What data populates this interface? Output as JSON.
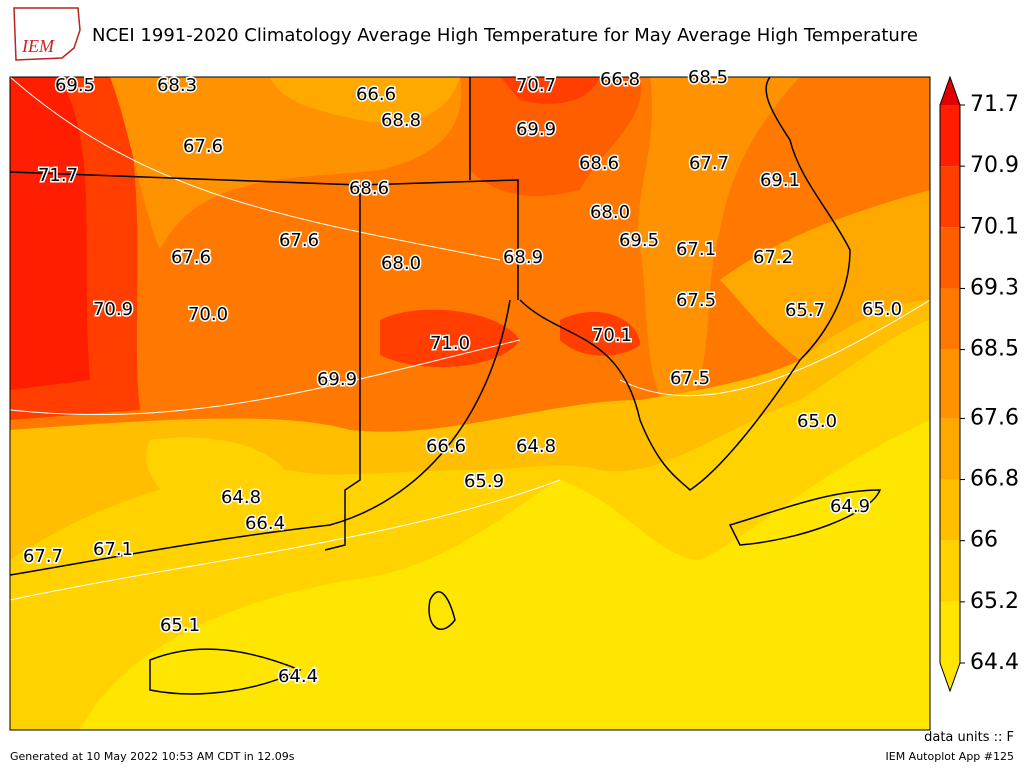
{
  "header": {
    "title": "NCEI 1991-2020 Climatology Average High Temperature for May Average High Temperature",
    "logo": "IEM"
  },
  "map": {
    "contour_labels": [
      "69.5",
      "68.3",
      "66.6",
      "70.7",
      "66.8",
      "68.5",
      "68.8",
      "69.9",
      "67.6",
      "68.6",
      "67.7",
      "71.7",
      "68.6",
      "69.1",
      "68.0",
      "69.5",
      "67.6",
      "67.1",
      "67.6",
      "68.0",
      "68.9",
      "67.2",
      "67.5",
      "70.9",
      "70.0",
      "65.7",
      "65.0",
      "70.1",
      "71.0",
      "69.9",
      "67.5",
      "65.0",
      "66.6",
      "64.8",
      "65.9",
      "64.8",
      "64.9",
      "66.4",
      "67.7",
      "67.1",
      "65.1",
      "64.4"
    ]
  },
  "colorbar": {
    "ticks": [
      64.4,
      65.2,
      66,
      66.8,
      67.6,
      68.5,
      69.3,
      70.1,
      70.9,
      71.7
    ],
    "colors": [
      "#ffe600",
      "#ffd200",
      "#ffbe00",
      "#ffa800",
      "#ff9200",
      "#ff7800",
      "#ff5e00",
      "#ff3e00",
      "#ff1e00"
    ],
    "under_color": "#ffe600",
    "over_color": "#e00000"
  },
  "footer": {
    "units": "data units :: F",
    "generated": "Generated at 10 May 2022 10:53 AM CDT in 12.09s",
    "app": "IEM Autoplot App #125"
  }
}
